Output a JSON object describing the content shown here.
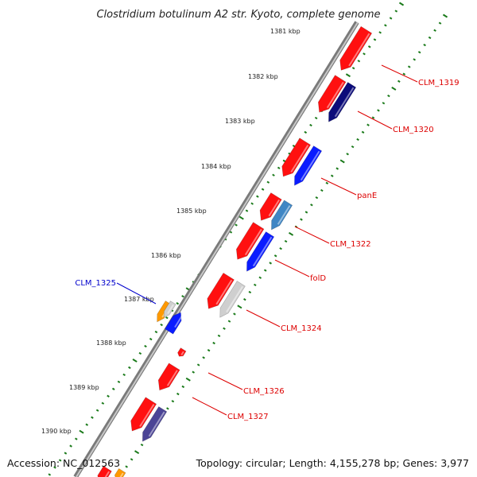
{
  "title": "Clostridium botulinum A2 str. Kyoto, complete genome",
  "footer": {
    "accession": "Accession: NC_012563",
    "topology": "Topology: circular; Length: 4,155,278 bp; Genes: 3,977"
  },
  "ruler": [
    {
      "label": "1381 kbp"
    },
    {
      "label": "1382 kbp"
    },
    {
      "label": "1383 kbp"
    },
    {
      "label": "1384 kbp"
    },
    {
      "label": "1385 kbp"
    },
    {
      "label": "1386 kbp"
    },
    {
      "label": "1387 kbp"
    },
    {
      "label": "1388 kbp"
    },
    {
      "label": "1389 kbp"
    },
    {
      "label": "1390 kbp"
    }
  ],
  "gene_labels": [
    {
      "text": "CLM_1319",
      "color": "#dd0000"
    },
    {
      "text": "CLM_1320",
      "color": "#dd0000"
    },
    {
      "text": "panE",
      "color": "#dd0000"
    },
    {
      "text": "CLM_1322",
      "color": "#dd0000"
    },
    {
      "text": "folD",
      "color": "#dd0000"
    },
    {
      "text": "CLM_1324",
      "color": "#dd0000"
    },
    {
      "text": "CLM_1325",
      "color": "#0000cc"
    },
    {
      "text": "CLM_1326",
      "color": "#dd0000"
    },
    {
      "text": "CLM_1327",
      "color": "#dd0000"
    }
  ],
  "colors": {
    "cds_red": "#ff1010",
    "blue": "#0a1cff",
    "navy": "#0b0b7a",
    "steel": "#3f86c4",
    "grey": "#cfcfcf",
    "slate": "#4b4496",
    "orange": "#ff9900",
    "backbone": "#8a8a8a",
    "tick": "#1a7a1a"
  }
}
